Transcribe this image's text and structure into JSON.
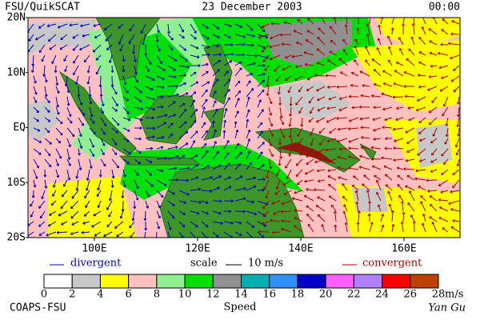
{
  "header": {
    "left": "FSU/QuikSCAT",
    "center": "23 December 2003",
    "right": "00:00"
  },
  "map": {
    "lat_labels": [
      "20N",
      "10N",
      "EQ",
      "10S",
      "20S"
    ],
    "lon_labels": [
      "100E",
      "120E",
      "140E",
      "160E"
    ]
  },
  "legend": {
    "divergent": "divergent",
    "scale": "scale",
    "scale_value": "10 m/s",
    "convergent": "convergent"
  },
  "colorbar": {
    "ticks": [
      0,
      2,
      4,
      6,
      8,
      10,
      12,
      14,
      16,
      18,
      20,
      22,
      24,
      26,
      28
    ],
    "unit": "m/s",
    "label": "Speed",
    "colors": [
      "#ffffff",
      "#c8c8c8",
      "#ffff00",
      "#ffc0c0",
      "#90f090",
      "#00e000",
      "#909090",
      "#00b0b0",
      "#3090ff",
      "#0000c8",
      "#ff60ff",
      "#b080ff",
      "#ff0000",
      "#c04000",
      "#000000"
    ]
  },
  "footer": {
    "left": "COAPS-FSU",
    "right": "Yan Gu"
  }
}
